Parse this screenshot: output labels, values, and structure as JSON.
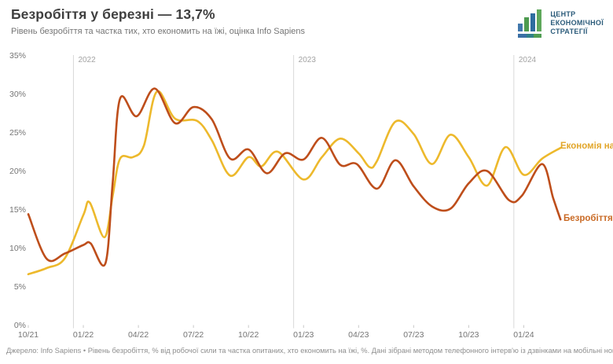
{
  "header": {
    "title": "Безробіття у березні — 13,7%",
    "subtitle": "Рівень безробіття та частка тих, хто економить на їжі, оцінка Info Sapiens"
  },
  "logo": {
    "org_name_lines": [
      "ЦЕНТР",
      "ЕКОНОМІЧНОЇ",
      "СТРАТЕГІЇ"
    ],
    "colors": {
      "blue": "#4178AC",
      "dark_blue": "#2E6DA0",
      "green": "#4E9B4F",
      "light_green": "#5FA85C",
      "teal": "#2F8089",
      "text": "#2B5B7A"
    }
  },
  "footer": {
    "source_note": "Джерело: Info Sapiens • Рівень безробіття, % від робочої сили та частка опитаних, хто економить на їжі, %. Дані зібрані методом телефонного інтерв'ю із дзвінками на мобільні номери"
  },
  "chart_data": {
    "type": "line",
    "title": "Безробіття у березні — 13,7%",
    "subtitle": "Рівень безробіття та частка тих, хто економить на їжі, оцінка Info Sapiens",
    "source": "Info Sapiens",
    "ylim": [
      0,
      35
    ],
    "y_ticks": [
      35,
      30,
      25,
      20,
      15,
      10,
      5,
      0
    ],
    "y_tick_suffix": "%",
    "grid": false,
    "x_unit": "month (MM/YY), offset counted from 10/21",
    "x_start": "10/21",
    "x_end": "03/24",
    "x_tick_labels": [
      "10/21",
      "01/22",
      "04/22",
      "07/22",
      "10/22",
      "01/23",
      "04/23",
      "07/23",
      "10/23",
      "01/24"
    ],
    "x_tick_month_offsets": [
      0,
      3,
      6,
      9,
      12,
      15,
      18,
      21,
      24,
      27
    ],
    "year_markers": [
      {
        "label": "2022",
        "month_offset": 2.46
      },
      {
        "label": "2023",
        "month_offset": 14.46
      },
      {
        "label": "2024",
        "month_offset": 26.46
      }
    ],
    "legend_position": "end-of-line",
    "points_unit": "[months_since_10/21, percent]",
    "series": [
      {
        "name": "Економія на їжі",
        "color": "#EDB92C",
        "label_color": "#E2A62B",
        "points": [
          [
            0,
            6.6
          ],
          [
            1,
            7.4
          ],
          [
            2,
            8.7
          ],
          [
            3,
            14.3
          ],
          [
            3.35,
            15.9
          ],
          [
            4.15,
            11.4
          ],
          [
            4.6,
            16.8
          ],
          [
            5,
            21.6
          ],
          [
            5.7,
            21.8
          ],
          [
            6.3,
            23.3
          ],
          [
            7,
            30.3
          ],
          [
            8,
            26.8
          ],
          [
            9.2,
            26.5
          ],
          [
            10,
            24.0
          ],
          [
            11,
            19.4
          ],
          [
            12,
            21.8
          ],
          [
            12.7,
            20.6
          ],
          [
            13.6,
            22.5
          ],
          [
            15,
            18.9
          ],
          [
            16,
            21.8
          ],
          [
            17,
            24.2
          ],
          [
            18,
            22.3
          ],
          [
            18.6,
            20.5
          ],
          [
            19,
            21.3
          ],
          [
            20,
            26.4
          ],
          [
            21,
            24.8
          ],
          [
            22,
            20.9
          ],
          [
            23,
            24.7
          ],
          [
            24,
            21.8
          ],
          [
            25,
            18.1
          ],
          [
            26,
            23.1
          ],
          [
            27,
            19.5
          ],
          [
            28,
            21.6
          ],
          [
            29,
            23.0
          ]
        ]
      },
      {
        "name": "Безробіття",
        "color": "#BE4E1B",
        "label_color": "#C96A25",
        "points": [
          [
            0,
            14.4
          ],
          [
            1,
            8.6
          ],
          [
            2,
            9.3
          ],
          [
            3,
            10.4
          ],
          [
            3.4,
            10.6
          ],
          [
            4.2,
            8.0
          ],
          [
            4.6,
            18.5
          ],
          [
            5,
            29.4
          ],
          [
            5.9,
            27.1
          ],
          [
            6.9,
            30.7
          ],
          [
            8,
            26.2
          ],
          [
            9,
            28.3
          ],
          [
            10,
            26.7
          ],
          [
            11,
            21.6
          ],
          [
            12,
            22.8
          ],
          [
            13,
            19.7
          ],
          [
            14,
            22.3
          ],
          [
            15,
            21.5
          ],
          [
            16,
            24.3
          ],
          [
            17,
            20.8
          ],
          [
            17.9,
            20.9
          ],
          [
            19,
            17.7
          ],
          [
            20,
            21.4
          ],
          [
            21,
            18.0
          ],
          [
            22,
            15.4
          ],
          [
            23,
            15.1
          ],
          [
            24,
            18.4
          ],
          [
            25,
            20.0
          ],
          [
            26.2,
            16.2
          ],
          [
            26.9,
            16.8
          ],
          [
            28,
            20.9
          ],
          [
            28.6,
            16.5
          ],
          [
            29,
            13.7
          ]
        ]
      }
    ]
  }
}
